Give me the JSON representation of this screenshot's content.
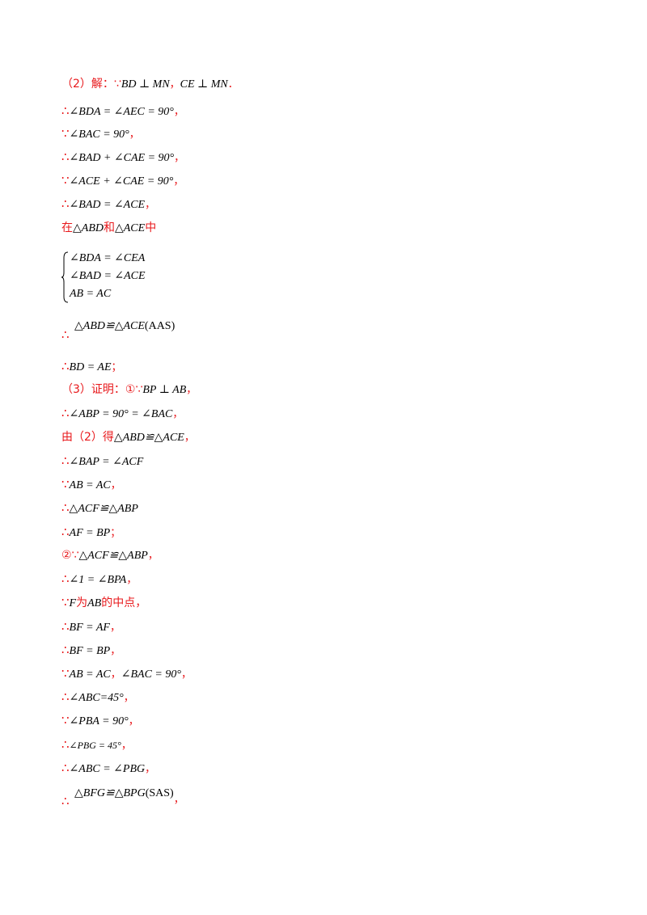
{
  "lines": [
    {
      "prefix": "（2）解：∵",
      "math": "BD ⊥ MN",
      "mid": "，",
      "math2": "CE ⊥ MN",
      "suffix": "．"
    },
    {
      "prefix": "∴",
      "math": "∠BDA = ∠AEC = 90°",
      "suffix": "，"
    },
    {
      "prefix": "∵",
      "math": "∠BAC = 90°",
      "suffix": "，"
    },
    {
      "prefix": "∴",
      "math": "∠BAD + ∠CAE = 90°",
      "suffix": "，"
    },
    {
      "prefix": "∵",
      "math": "∠ACE + ∠CAE = 90°",
      "suffix": "，"
    },
    {
      "prefix": "∴",
      "math": "∠BAD = ∠ACE",
      "suffix": "，"
    },
    {
      "prefix": "在",
      "math": "△ABD",
      "mid": "和",
      "math2": "△ACE",
      "suffix": "中"
    }
  ],
  "system": [
    "∠BDA = ∠CEA",
    "∠BAD = ∠ACE",
    "AB = AC"
  ],
  "aas": {
    "prefix": "∴",
    "math": "△ABD≌△ACE",
    "tag": "(AAS)"
  },
  "lines2": [
    {
      "prefix": "∴",
      "math": "BD = AE",
      "suffix": "；"
    },
    {
      "prefix": "（3）证明：①∵",
      "math": "BP ⊥ AB",
      "suffix": "，"
    },
    {
      "prefix": "∴",
      "math": "∠ABP = 90° = ∠BAC",
      "suffix": "，"
    },
    {
      "prefix": "由（2）得",
      "math": "△ABD≌△ACE",
      "suffix": "，"
    },
    {
      "prefix": "∴",
      "math": "∠BAP = ∠ACF",
      "suffix": ""
    },
    {
      "prefix": "∵",
      "math": "AB = AC",
      "suffix": "，"
    },
    {
      "prefix": "∴",
      "math": "△ACF≌△ABP",
      "suffix": ""
    },
    {
      "prefix": "∴",
      "math": "AF = BP",
      "suffix": "；"
    },
    {
      "prefix": "②∵",
      "math": "△ACF≌△ABP",
      "suffix": "，"
    },
    {
      "prefix": "∴",
      "math": "∠1 = ∠BPA",
      "suffix": "，"
    },
    {
      "prefix": "∵",
      "math": "F",
      "mid": "为",
      "math2": "AB",
      "suffix": "的中点，"
    },
    {
      "prefix": "∴",
      "math": "BF = AF",
      "suffix": "，"
    },
    {
      "prefix": "∴",
      "math": "BF = BP",
      "suffix": "，"
    },
    {
      "prefix": "∵",
      "math": "AB = AC",
      "mid": "，",
      "math2": "∠BAC = 90°",
      "suffix": "，"
    },
    {
      "prefix": "∴",
      "math": "∠ABC=45°",
      "suffix": "，"
    },
    {
      "prefix": "∵",
      "math": "∠PBA = 90°",
      "suffix": "，"
    },
    {
      "prefix": "∴",
      "math": "∠PBG = 45°",
      "suffix": "，"
    },
    {
      "prefix": "∴",
      "math": "∠ABC = ∠PBG",
      "suffix": "，"
    }
  ],
  "sas": {
    "prefix": "∴",
    "math": "△BFG≌△BPG",
    "tag": "(SAS)",
    "suffix": "，"
  }
}
